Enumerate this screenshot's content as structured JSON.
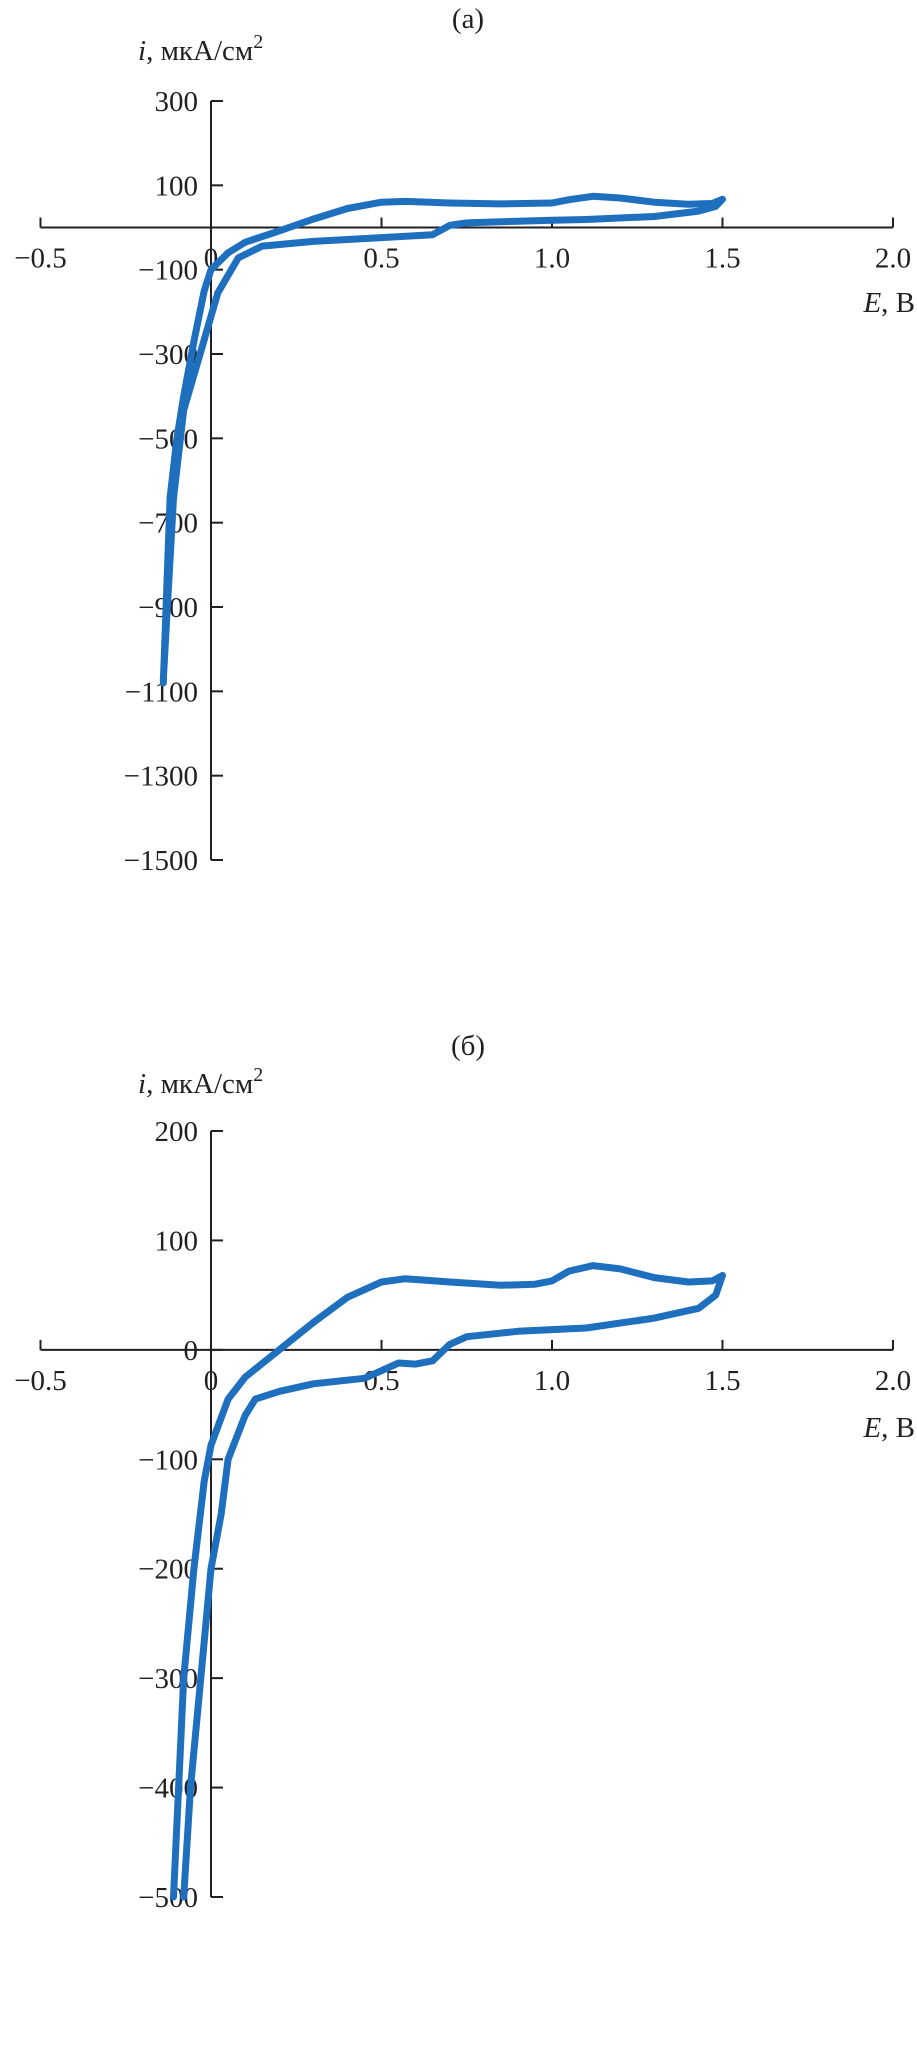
{
  "chart_data": [
    {
      "type": "line",
      "panel_label": "(a)",
      "ylabel": {
        "symbol": "i",
        "unit": ", мкА/см",
        "sup": "2"
      },
      "xlabel": {
        "symbol": "E",
        "unit": ", В"
      },
      "xlim": [
        -0.5,
        2.0
      ],
      "ylim": [
        -1500,
        300
      ],
      "x_ticks": [
        -0.5,
        0,
        0.5,
        1.0,
        1.5,
        2.0
      ],
      "x_tick_labels": [
        "−0.5",
        "0",
        "0.5",
        "1.0",
        "1.5",
        "2.0"
      ],
      "y_ticks": [
        300,
        100,
        -100,
        -300,
        -500,
        -700,
        -900,
        -1100,
        -1300,
        -1500
      ],
      "y_tick_labels": [
        "300",
        "100",
        "−100",
        "−300",
        "−500",
        "−700",
        "−900",
        "−1100",
        "−1300",
        "−1500"
      ],
      "grid": false,
      "color": "#1f6fbf",
      "series": [
        {
          "x": [
            -0.14,
            -0.12,
            -0.1,
            -0.08,
            -0.05,
            -0.02,
            0,
            0.05,
            0.1,
            0.2,
            0.3,
            0.4,
            0.5,
            0.57,
            0.7,
            0.85,
            1.0,
            1.05,
            1.12,
            1.2,
            1.3,
            1.4,
            1.47,
            1.5,
            1.48,
            1.43,
            1.3,
            1.1,
            1.0,
            0.9,
            0.75,
            0.7,
            0.65,
            0.5,
            0.3,
            0.15,
            0.08,
            0.02,
            -0.03,
            -0.08,
            -0.11,
            -0.14
          ],
          "y": [
            -1080,
            -640,
            -500,
            -400,
            -270,
            -150,
            -100,
            -60,
            -35,
            -8,
            20,
            45,
            60,
            62,
            58,
            56,
            58,
            66,
            74,
            70,
            60,
            55,
            57,
            67,
            50,
            39,
            26,
            19,
            17,
            15,
            11,
            5,
            -17,
            -24,
            -33,
            -44,
            -72,
            -155,
            -294,
            -433,
            -642,
            -1072
          ]
        }
      ]
    },
    {
      "type": "line",
      "panel_label": "(б)",
      "ylabel": {
        "symbol": "i",
        "unit": ", мкА/см",
        "sup": "2"
      },
      "xlabel": {
        "symbol": "E",
        "unit": ", В"
      },
      "xlim": [
        -0.5,
        2.0
      ],
      "ylim": [
        -500,
        200
      ],
      "x_ticks": [
        -0.5,
        0,
        0.5,
        1.0,
        1.5,
        2.0
      ],
      "x_tick_labels": [
        "−0.5",
        "0",
        "0.5",
        "1.0",
        "1.5",
        "2.0"
      ],
      "y_ticks": [
        200,
        100,
        0,
        -100,
        -200,
        -300,
        -400,
        -500
      ],
      "y_tick_labels": [
        "200",
        "100",
        "0",
        "−100",
        "−200",
        "−300",
        "−400",
        "−500"
      ],
      "grid": false,
      "color": "#1f6fbf",
      "series": [
        {
          "x": [
            -0.11,
            -0.08,
            -0.05,
            -0.02,
            0,
            0.05,
            0.1,
            0.2,
            0.3,
            0.4,
            0.5,
            0.57,
            0.7,
            0.85,
            0.95,
            1.0,
            1.05,
            1.12,
            1.2,
            1.3,
            1.4,
            1.47,
            1.5,
            1.48,
            1.43,
            1.3,
            1.1,
            0.9,
            0.75,
            0.7,
            0.65,
            0.6,
            0.55,
            0.45,
            0.3,
            0.2,
            0.13,
            0.1,
            0.05,
            0.03,
            0.0,
            -0.03,
            -0.06,
            -0.08
          ],
          "y": [
            -500,
            -300,
            -200,
            -120,
            -87,
            -45,
            -25,
            0,
            25,
            48,
            62,
            65,
            62,
            59,
            60,
            63,
            72,
            77,
            74,
            66,
            62,
            63,
            68,
            50,
            38,
            29,
            20,
            17,
            12,
            5,
            -10,
            -13,
            -12,
            -26,
            -31,
            -38,
            -45,
            -60,
            -100,
            -150,
            -200,
            -300,
            -400,
            -500
          ]
        }
      ]
    }
  ]
}
